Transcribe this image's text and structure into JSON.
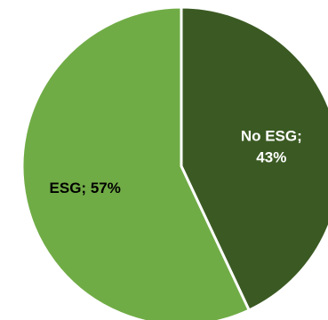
{
  "chart_data": {
    "type": "pie",
    "slices": [
      {
        "category": "No ESG",
        "value": 43,
        "label": "No ESG;|43%",
        "color": "#3b5a23",
        "label_color": "#ffffff"
      },
      {
        "category": "ESG",
        "value": 57,
        "label": "ESG; 57%",
        "color": "#70ac46",
        "label_color": "#000000"
      }
    ],
    "start_angle_deg": 0,
    "direction": "clockwise",
    "slice_separator_color": "#ffffff",
    "legend": "none"
  }
}
